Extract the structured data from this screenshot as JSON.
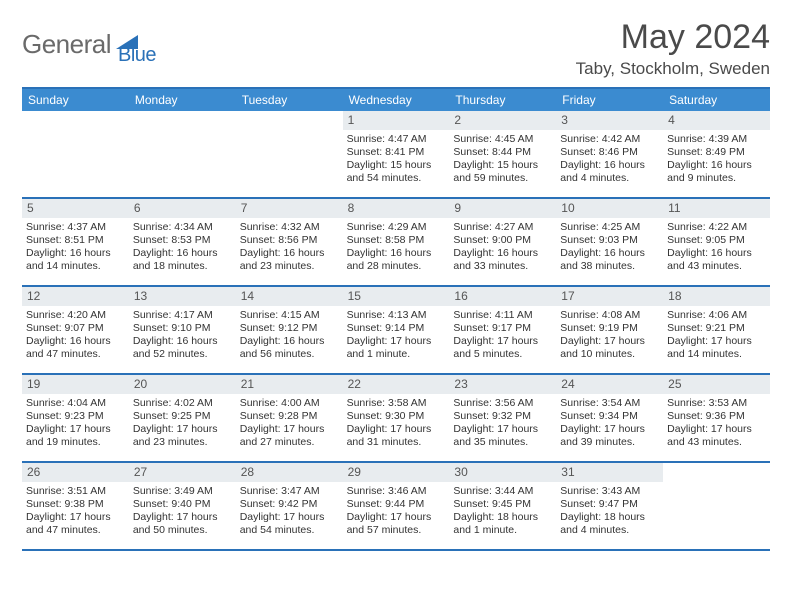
{
  "logo": {
    "text1": "General",
    "text2": "Blue"
  },
  "title": "May 2024",
  "location": "Taby, Stockholm, Sweden",
  "colors": {
    "header_bar": "#3b8bd0",
    "accent_line": "#2a71b8",
    "daynum_bg": "#e8ecef",
    "logo_gray": "#6a6a6a",
    "logo_blue": "#2a71b8"
  },
  "dow": [
    "Sunday",
    "Monday",
    "Tuesday",
    "Wednesday",
    "Thursday",
    "Friday",
    "Saturday"
  ],
  "weeks": [
    [
      {
        "n": "",
        "empty": true
      },
      {
        "n": "",
        "empty": true
      },
      {
        "n": "",
        "empty": true
      },
      {
        "n": "1",
        "sr": "Sunrise: 4:47 AM",
        "ss": "Sunset: 8:41 PM",
        "dl": "Daylight: 15 hours and 54 minutes."
      },
      {
        "n": "2",
        "sr": "Sunrise: 4:45 AM",
        "ss": "Sunset: 8:44 PM",
        "dl": "Daylight: 15 hours and 59 minutes."
      },
      {
        "n": "3",
        "sr": "Sunrise: 4:42 AM",
        "ss": "Sunset: 8:46 PM",
        "dl": "Daylight: 16 hours and 4 minutes."
      },
      {
        "n": "4",
        "sr": "Sunrise: 4:39 AM",
        "ss": "Sunset: 8:49 PM",
        "dl": "Daylight: 16 hours and 9 minutes."
      }
    ],
    [
      {
        "n": "5",
        "sr": "Sunrise: 4:37 AM",
        "ss": "Sunset: 8:51 PM",
        "dl": "Daylight: 16 hours and 14 minutes."
      },
      {
        "n": "6",
        "sr": "Sunrise: 4:34 AM",
        "ss": "Sunset: 8:53 PM",
        "dl": "Daylight: 16 hours and 18 minutes."
      },
      {
        "n": "7",
        "sr": "Sunrise: 4:32 AM",
        "ss": "Sunset: 8:56 PM",
        "dl": "Daylight: 16 hours and 23 minutes."
      },
      {
        "n": "8",
        "sr": "Sunrise: 4:29 AM",
        "ss": "Sunset: 8:58 PM",
        "dl": "Daylight: 16 hours and 28 minutes."
      },
      {
        "n": "9",
        "sr": "Sunrise: 4:27 AM",
        "ss": "Sunset: 9:00 PM",
        "dl": "Daylight: 16 hours and 33 minutes."
      },
      {
        "n": "10",
        "sr": "Sunrise: 4:25 AM",
        "ss": "Sunset: 9:03 PM",
        "dl": "Daylight: 16 hours and 38 minutes."
      },
      {
        "n": "11",
        "sr": "Sunrise: 4:22 AM",
        "ss": "Sunset: 9:05 PM",
        "dl": "Daylight: 16 hours and 43 minutes."
      }
    ],
    [
      {
        "n": "12",
        "sr": "Sunrise: 4:20 AM",
        "ss": "Sunset: 9:07 PM",
        "dl": "Daylight: 16 hours and 47 minutes."
      },
      {
        "n": "13",
        "sr": "Sunrise: 4:17 AM",
        "ss": "Sunset: 9:10 PM",
        "dl": "Daylight: 16 hours and 52 minutes."
      },
      {
        "n": "14",
        "sr": "Sunrise: 4:15 AM",
        "ss": "Sunset: 9:12 PM",
        "dl": "Daylight: 16 hours and 56 minutes."
      },
      {
        "n": "15",
        "sr": "Sunrise: 4:13 AM",
        "ss": "Sunset: 9:14 PM",
        "dl": "Daylight: 17 hours and 1 minute."
      },
      {
        "n": "16",
        "sr": "Sunrise: 4:11 AM",
        "ss": "Sunset: 9:17 PM",
        "dl": "Daylight: 17 hours and 5 minutes."
      },
      {
        "n": "17",
        "sr": "Sunrise: 4:08 AM",
        "ss": "Sunset: 9:19 PM",
        "dl": "Daylight: 17 hours and 10 minutes."
      },
      {
        "n": "18",
        "sr": "Sunrise: 4:06 AM",
        "ss": "Sunset: 9:21 PM",
        "dl": "Daylight: 17 hours and 14 minutes."
      }
    ],
    [
      {
        "n": "19",
        "sr": "Sunrise: 4:04 AM",
        "ss": "Sunset: 9:23 PM",
        "dl": "Daylight: 17 hours and 19 minutes."
      },
      {
        "n": "20",
        "sr": "Sunrise: 4:02 AM",
        "ss": "Sunset: 9:25 PM",
        "dl": "Daylight: 17 hours and 23 minutes."
      },
      {
        "n": "21",
        "sr": "Sunrise: 4:00 AM",
        "ss": "Sunset: 9:28 PM",
        "dl": "Daylight: 17 hours and 27 minutes."
      },
      {
        "n": "22",
        "sr": "Sunrise: 3:58 AM",
        "ss": "Sunset: 9:30 PM",
        "dl": "Daylight: 17 hours and 31 minutes."
      },
      {
        "n": "23",
        "sr": "Sunrise: 3:56 AM",
        "ss": "Sunset: 9:32 PM",
        "dl": "Daylight: 17 hours and 35 minutes."
      },
      {
        "n": "24",
        "sr": "Sunrise: 3:54 AM",
        "ss": "Sunset: 9:34 PM",
        "dl": "Daylight: 17 hours and 39 minutes."
      },
      {
        "n": "25",
        "sr": "Sunrise: 3:53 AM",
        "ss": "Sunset: 9:36 PM",
        "dl": "Daylight: 17 hours and 43 minutes."
      }
    ],
    [
      {
        "n": "26",
        "sr": "Sunrise: 3:51 AM",
        "ss": "Sunset: 9:38 PM",
        "dl": "Daylight: 17 hours and 47 minutes."
      },
      {
        "n": "27",
        "sr": "Sunrise: 3:49 AM",
        "ss": "Sunset: 9:40 PM",
        "dl": "Daylight: 17 hours and 50 minutes."
      },
      {
        "n": "28",
        "sr": "Sunrise: 3:47 AM",
        "ss": "Sunset: 9:42 PM",
        "dl": "Daylight: 17 hours and 54 minutes."
      },
      {
        "n": "29",
        "sr": "Sunrise: 3:46 AM",
        "ss": "Sunset: 9:44 PM",
        "dl": "Daylight: 17 hours and 57 minutes."
      },
      {
        "n": "30",
        "sr": "Sunrise: 3:44 AM",
        "ss": "Sunset: 9:45 PM",
        "dl": "Daylight: 18 hours and 1 minute."
      },
      {
        "n": "31",
        "sr": "Sunrise: 3:43 AM",
        "ss": "Sunset: 9:47 PM",
        "dl": "Daylight: 18 hours and 4 minutes."
      },
      {
        "n": "",
        "empty": true
      }
    ]
  ]
}
